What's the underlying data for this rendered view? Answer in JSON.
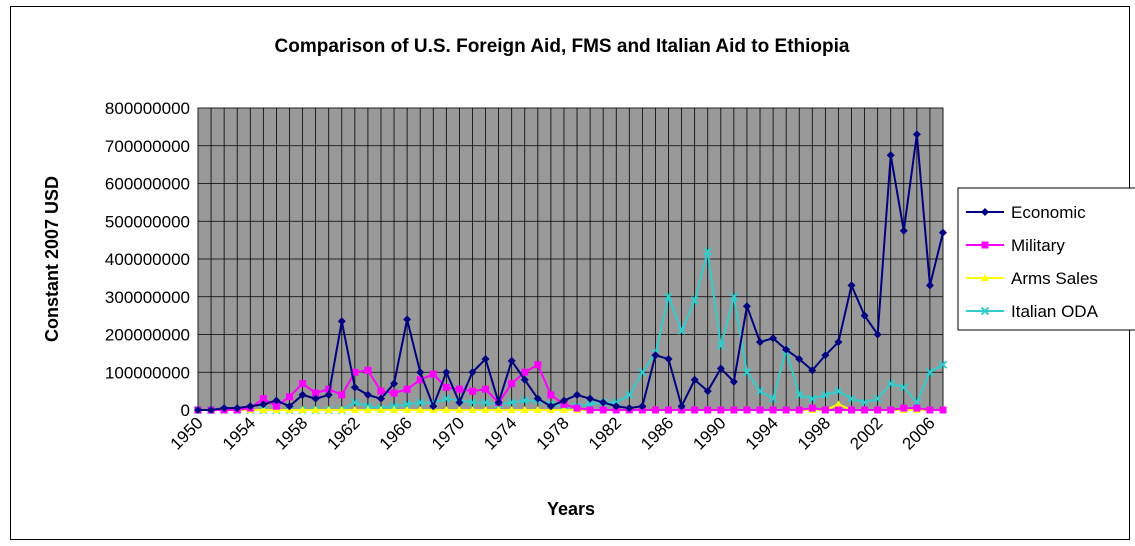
{
  "chart_data": {
    "type": "line",
    "title": "Comparison of U.S. Foreign Aid, FMS and Italian Aid to Ethiopia",
    "xlabel": "Years",
    "ylabel": "Constant 2007 USD",
    "ylim": [
      0,
      800000000
    ],
    "yticks": [
      "0",
      "100000000",
      "200000000",
      "300000000",
      "400000000",
      "500000000",
      "600000000",
      "700000000",
      "800000000"
    ],
    "xlim": [
      1950,
      2007
    ],
    "xticks": [
      "1950",
      "1954",
      "1958",
      "1962",
      "1966",
      "1970",
      "1974",
      "1978",
      "1982",
      "1986",
      "1990",
      "1994",
      "1998",
      "2002",
      "2006"
    ],
    "grid": true,
    "legend_position": "right",
    "x": [
      1950,
      1951,
      1952,
      1953,
      1954,
      1955,
      1956,
      1957,
      1958,
      1959,
      1960,
      1961,
      1962,
      1963,
      1964,
      1965,
      1966,
      1967,
      1968,
      1969,
      1970,
      1971,
      1972,
      1973,
      1974,
      1975,
      1976,
      1977,
      1978,
      1979,
      1980,
      1981,
      1982,
      1983,
      1984,
      1985,
      1986,
      1987,
      1988,
      1989,
      1990,
      1991,
      1992,
      1993,
      1994,
      1995,
      1996,
      1997,
      1998,
      1999,
      2000,
      2001,
      2002,
      2003,
      2004,
      2005,
      2006,
      2007
    ],
    "series": [
      {
        "name": "Economic",
        "color": "#000080",
        "marker": "diamond",
        "values": [
          0,
          0,
          5000000,
          5000000,
          10000000,
          15000000,
          25000000,
          10000000,
          40000000,
          30000000,
          40000000,
          235000000,
          60000000,
          40000000,
          30000000,
          70000000,
          240000000,
          100000000,
          10000000,
          100000000,
          20000000,
          100000000,
          135000000,
          20000000,
          130000000,
          80000000,
          30000000,
          10000000,
          25000000,
          40000000,
          30000000,
          20000000,
          10000000,
          5000000,
          10000000,
          145000000,
          135000000,
          10000000,
          80000000,
          50000000,
          110000000,
          75000000,
          275000000,
          180000000,
          190000000,
          160000000,
          135000000,
          105000000,
          145000000,
          180000000,
          330000000,
          250000000,
          200000000,
          675000000,
          475000000,
          730000000,
          330000000,
          470000000
        ]
      },
      {
        "name": "Military",
        "color": "#ff00ff",
        "marker": "square",
        "values": [
          0,
          0,
          0,
          0,
          5000000,
          30000000,
          10000000,
          35000000,
          70000000,
          45000000,
          55000000,
          40000000,
          100000000,
          105000000,
          50000000,
          45000000,
          55000000,
          80000000,
          95000000,
          60000000,
          55000000,
          50000000,
          55000000,
          20000000,
          70000000,
          100000000,
          120000000,
          40000000,
          15000000,
          5000000,
          0,
          0,
          0,
          0,
          0,
          0,
          0,
          0,
          0,
          0,
          0,
          0,
          0,
          0,
          0,
          0,
          0,
          5000000,
          0,
          0,
          0,
          0,
          0,
          0,
          5000000,
          5000000,
          0,
          0
        ]
      },
      {
        "name": "Arms Sales",
        "color": "#ffff00",
        "marker": "triangle",
        "values": [
          0,
          0,
          0,
          0,
          0,
          0,
          0,
          0,
          0,
          0,
          0,
          0,
          0,
          0,
          0,
          0,
          0,
          0,
          0,
          0,
          0,
          0,
          0,
          0,
          0,
          0,
          0,
          0,
          0,
          0,
          0,
          0,
          0,
          0,
          0,
          0,
          0,
          0,
          0,
          0,
          0,
          0,
          0,
          0,
          0,
          0,
          0,
          0,
          0,
          15000000,
          0,
          0,
          0,
          0,
          0,
          0,
          0,
          0
        ]
      },
      {
        "name": "Italian ODA",
        "color": "#33cccc",
        "marker": "x",
        "values": [
          0,
          0,
          0,
          0,
          0,
          0,
          0,
          0,
          0,
          0,
          0,
          0,
          20000000,
          10000000,
          5000000,
          10000000,
          15000000,
          20000000,
          20000000,
          30000000,
          25000000,
          20000000,
          20000000,
          15000000,
          20000000,
          25000000,
          25000000,
          15000000,
          10000000,
          10000000,
          15000000,
          20000000,
          20000000,
          40000000,
          100000000,
          150000000,
          300000000,
          210000000,
          290000000,
          420000000,
          170000000,
          300000000,
          100000000,
          50000000,
          30000000,
          160000000,
          40000000,
          30000000,
          40000000,
          50000000,
          30000000,
          20000000,
          30000000,
          70000000,
          60000000,
          20000000,
          100000000,
          120000000
        ]
      }
    ]
  }
}
